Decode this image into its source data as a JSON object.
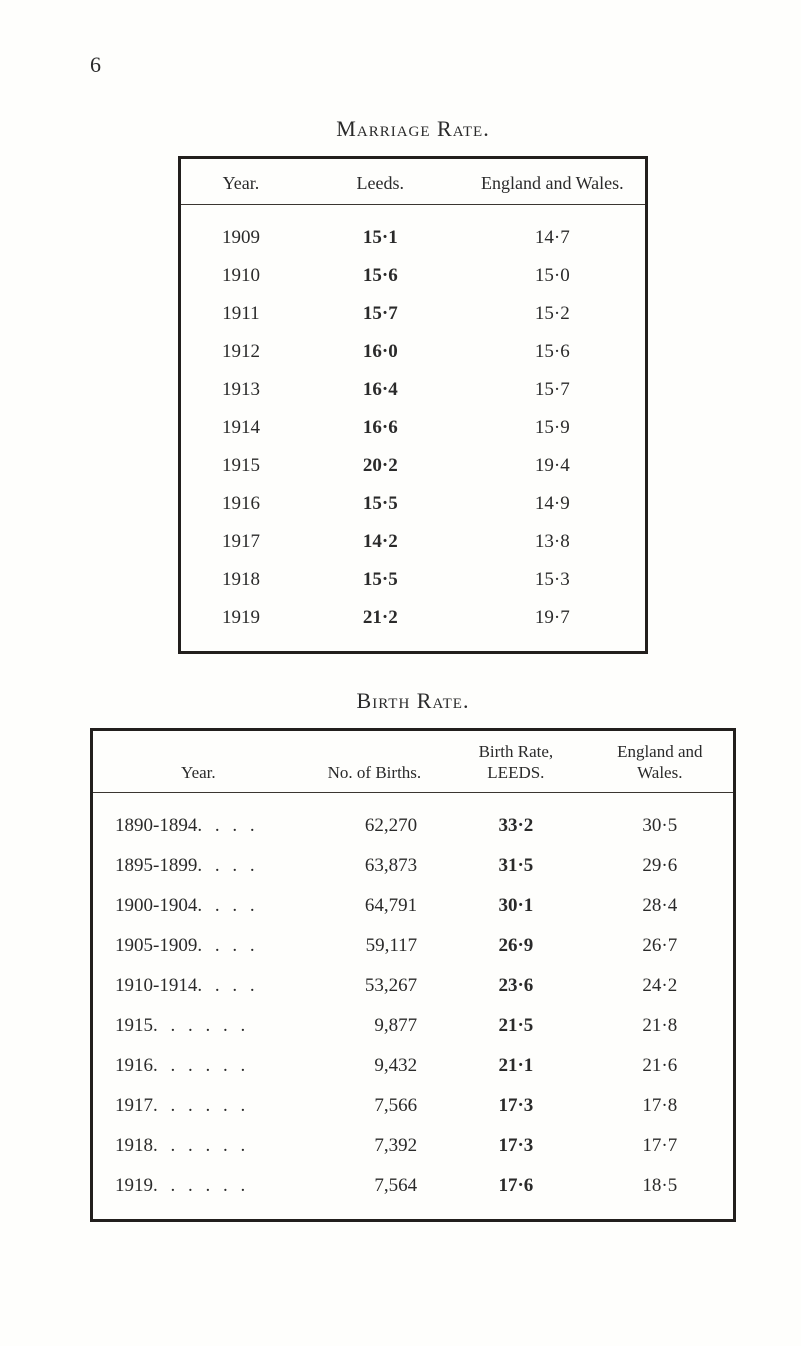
{
  "page_number": "6",
  "marriage": {
    "title": "Marriage Rate.",
    "columns": [
      "Year.",
      "Leeds.",
      "England and Wales."
    ],
    "rows": [
      {
        "year": "1909",
        "leeds": "15·1",
        "ew": "14·7"
      },
      {
        "year": "1910",
        "leeds": "15·6",
        "ew": "15·0"
      },
      {
        "year": "1911",
        "leeds": "15·7",
        "ew": "15·2"
      },
      {
        "year": "1912",
        "leeds": "16·0",
        "ew": "15·6"
      },
      {
        "year": "1913",
        "leeds": "16·4",
        "ew": "15·7"
      },
      {
        "year": "1914",
        "leeds": "16·6",
        "ew": "15·9"
      },
      {
        "year": "1915",
        "leeds": "20·2",
        "ew": "19·4"
      },
      {
        "year": "1916",
        "leeds": "15·5",
        "ew": "14·9"
      },
      {
        "year": "1917",
        "leeds": "14·2",
        "ew": "13·8"
      },
      {
        "year": "1918",
        "leeds": "15·5",
        "ew": "15·3"
      },
      {
        "year": "1919",
        "leeds": "21·2",
        "ew": "19·7"
      }
    ]
  },
  "birth": {
    "title": "Birth Rate.",
    "columns": [
      "Year.",
      "No. of Births.",
      "Birth Rate,\nLEEDS.",
      "England and\nWales."
    ],
    "rows": [
      {
        "year": "1890-1894",
        "dots": " . .    . .",
        "births": "62,270",
        "rate": "33·2",
        "ew": "30·5"
      },
      {
        "year": "1895-1899",
        "dots": " . .    . .",
        "births": "63,873",
        "rate": "31·5",
        "ew": "29·6"
      },
      {
        "year": "1900-1904",
        "dots": " . .    . .",
        "births": "64,791",
        "rate": "30·1",
        "ew": "28·4"
      },
      {
        "year": "1905-1909",
        "dots": " . .    . .",
        "births": "59,117",
        "rate": "26·9",
        "ew": "26·7"
      },
      {
        "year": "1910-1914",
        "dots": " . .    . .",
        "births": "53,267",
        "rate": "23·6",
        "ew": "24·2"
      },
      {
        "year": "1915",
        "dots": " . .    . .    . .",
        "births": "9,877",
        "rate": "21·5",
        "ew": "21·8"
      },
      {
        "year": "1916",
        "dots": " . .    . .    . .",
        "births": "9,432",
        "rate": "21·1",
        "ew": "21·6"
      },
      {
        "year": "1917",
        "dots": " . .    . .    . .",
        "births": "7,566",
        "rate": "17·3",
        "ew": "17·8"
      },
      {
        "year": "1918",
        "dots": " . .    . .    . .",
        "births": "7,392",
        "rate": "17·3",
        "ew": "17·7"
      },
      {
        "year": "1919",
        "dots": " . .    . .    . .",
        "births": "7,564",
        "rate": "17·6",
        "ew": "18·5"
      }
    ]
  },
  "style": {
    "page_bg": "#fefefc",
    "text_color": "#2a2a2a",
    "border_color": "#221f1d",
    "rule_color": "#3b3631",
    "title_fontsize_pt": 16,
    "header_fontsize_pt": 13,
    "body_fontsize_pt": 14,
    "font_family": "Times New Roman"
  }
}
